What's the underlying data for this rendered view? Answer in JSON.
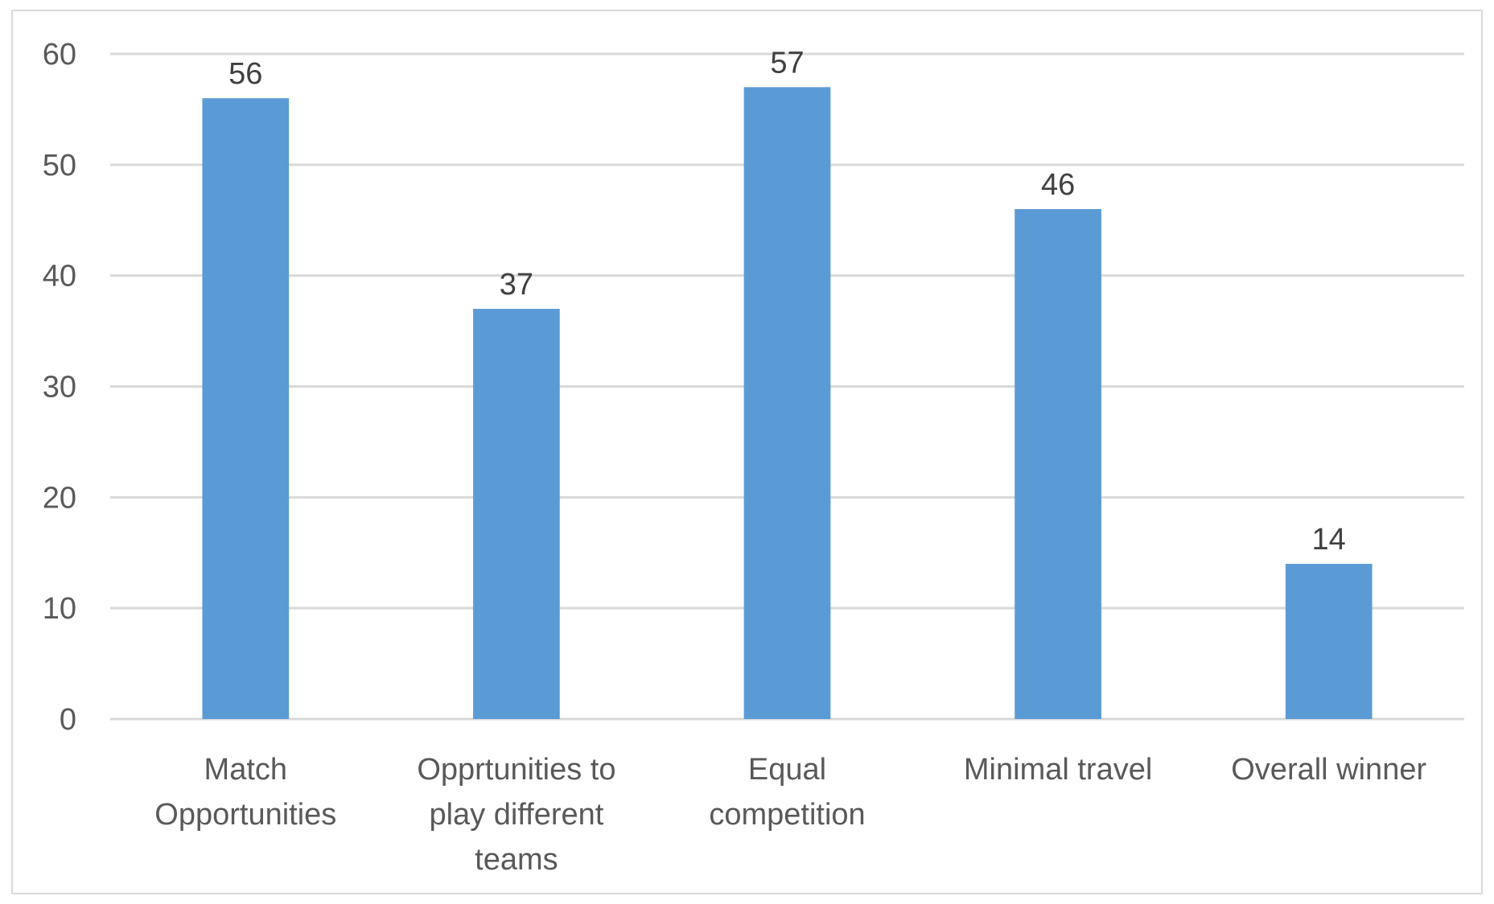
{
  "chart_data": {
    "type": "bar",
    "categories": [
      [
        "Match",
        "Opportunities"
      ],
      [
        "Opprtunities to",
        "play different",
        "teams"
      ],
      [
        "Equal",
        "competition"
      ],
      [
        "Minimal travel"
      ],
      [
        "Overall winner"
      ]
    ],
    "values": [
      56,
      37,
      57,
      46,
      14
    ],
    "data_labels": [
      "56",
      "37",
      "57",
      "46",
      "14"
    ],
    "yticks": [
      0,
      10,
      20,
      30,
      40,
      50,
      60
    ],
    "ylim": [
      0,
      60
    ],
    "grid": true,
    "legend": "none",
    "bar_color": "#5b9bd5",
    "gridline_color": "#d9d9d9",
    "title": "",
    "xlabel": "",
    "ylabel": ""
  }
}
